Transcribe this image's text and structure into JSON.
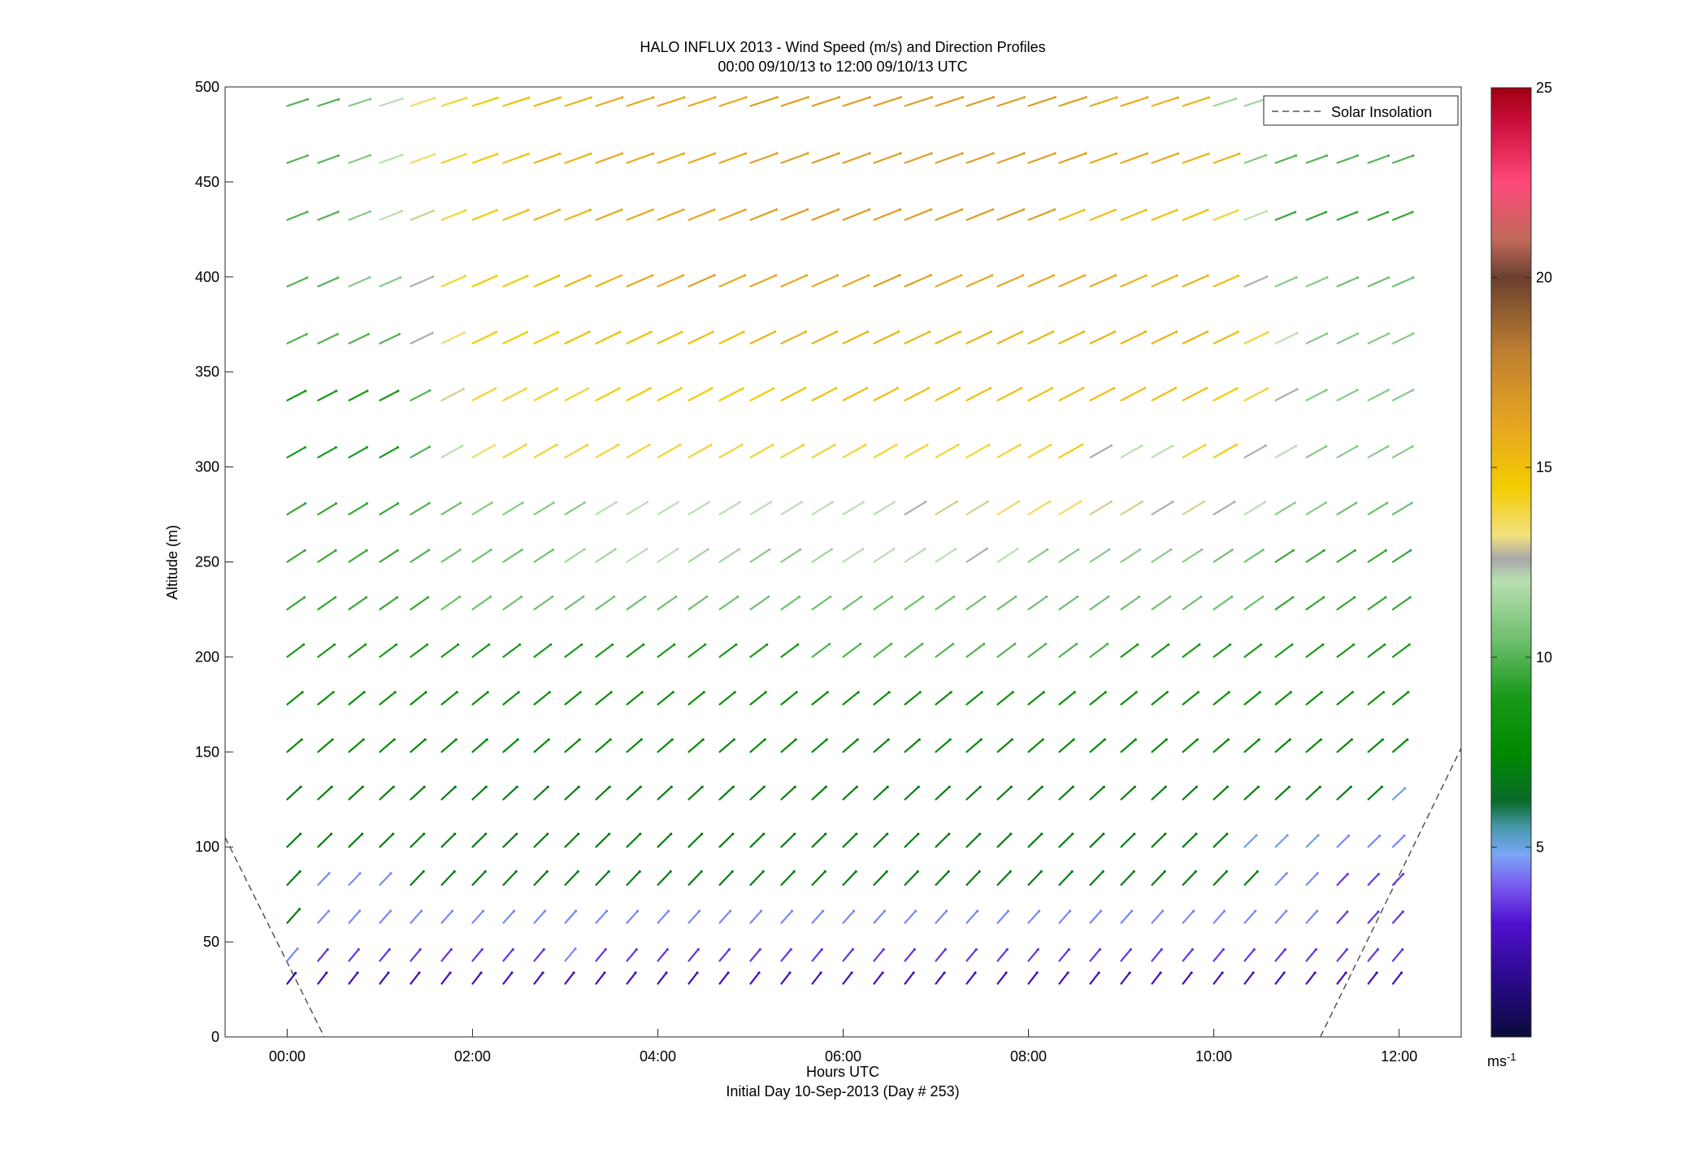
{
  "chart_data": {
    "type": "vector-field",
    "title": "HALO INFLUX 2013 - Wind Speed (m/s) and Direction Profiles",
    "subtitle": "00:00 09/10/13 to 12:00 09/10/13  UTC",
    "xlabel": "Hours UTC",
    "xlabel2": "Initial Day 10-Sep-2013 (Day # 253)",
    "ylabel": "Altitude (m)",
    "x_range_hours": [
      -0.67,
      12.67
    ],
    "ylim": [
      0,
      500
    ],
    "x_ticks": [
      {
        "hour": 0,
        "label": "00:00"
      },
      {
        "hour": 2,
        "label": "02:00"
      },
      {
        "hour": 4,
        "label": "04:00"
      },
      {
        "hour": 6,
        "label": "06:00"
      },
      {
        "hour": 8,
        "label": "08:00"
      },
      {
        "hour": 10,
        "label": "10:00"
      },
      {
        "hour": 12,
        "label": "12:00"
      }
    ],
    "y_ticks": [
      0,
      50,
      100,
      150,
      200,
      250,
      300,
      350,
      400,
      450,
      500
    ],
    "legend": {
      "label": "Solar Insolation",
      "placement": "top-right",
      "style": "dashed"
    },
    "colorbar": {
      "range": [
        0,
        25
      ],
      "ticks": [
        5,
        10,
        15,
        20,
        25
      ],
      "unit": "ms",
      "unit_exponent": "-1",
      "stops": [
        {
          "v": 0,
          "color": "#0a0a3a"
        },
        {
          "v": 1.5,
          "color": "#2a0a8a"
        },
        {
          "v": 3,
          "color": "#5010d0"
        },
        {
          "v": 4,
          "color": "#7a5cf0"
        },
        {
          "v": 4.8,
          "color": "#7aa6f4"
        },
        {
          "v": 5.5,
          "color": "#4a9ab0"
        },
        {
          "v": 6.2,
          "color": "#0a6a2a"
        },
        {
          "v": 7.5,
          "color": "#008a00"
        },
        {
          "v": 9,
          "color": "#1a9a1a"
        },
        {
          "v": 10.5,
          "color": "#70c070"
        },
        {
          "v": 12,
          "color": "#b8e0b0"
        },
        {
          "v": 12.6,
          "color": "#a8a8a8"
        },
        {
          "v": 13.2,
          "color": "#f2e080"
        },
        {
          "v": 14.5,
          "color": "#f2cc00"
        },
        {
          "v": 16,
          "color": "#e8a820"
        },
        {
          "v": 18,
          "color": "#c08030"
        },
        {
          "v": 20,
          "color": "#6a4030"
        },
        {
          "v": 21,
          "color": "#c06a5a"
        },
        {
          "v": 22.5,
          "color": "#ff4a7a"
        },
        {
          "v": 24,
          "color": "#d01040"
        },
        {
          "v": 25,
          "color": "#a00010"
        }
      ]
    },
    "solar_insolation_line": {
      "segments": [
        [
          [
            -0.67,
            105
          ],
          [
            0.4,
            0
          ]
        ],
        [
          [
            11.15,
            0
          ],
          [
            12.67,
            152
          ]
        ]
      ]
    },
    "altitudes_m": [
      28,
      40,
      60,
      80,
      100,
      125,
      150,
      175,
      200,
      225,
      250,
      275,
      305,
      335,
      365,
      395,
      430,
      460,
      490
    ],
    "times_hours": [
      0,
      0.333,
      0.667,
      1.0,
      1.333,
      1.667,
      2.0,
      2.333,
      2.667,
      3.0,
      3.333,
      3.667,
      4.0,
      4.333,
      4.667,
      5.0,
      5.333,
      5.667,
      6.0,
      6.333,
      6.667,
      7.0,
      7.333,
      7.667,
      8.0,
      8.333,
      8.667,
      9.0,
      9.333,
      9.667,
      10.0,
      10.333,
      10.667,
      11.0,
      11.333,
      11.667,
      11.933
    ],
    "wind_speed_ms": [
      [
        2,
        2.5,
        2.5,
        2.5,
        2.5,
        2.5,
        2.5,
        2.5,
        2.5,
        2.5,
        2.5,
        2.5,
        2.5,
        2.5,
        2.5,
        2.5,
        2.5,
        2.5,
        2.5,
        2.5,
        2.5,
        2.5,
        2.5,
        2.5,
        2.5,
        2.5,
        2.5,
        2.5,
        2.5,
        2.5,
        2.5,
        2.5,
        2.5,
        2.5,
        2.5,
        2.5,
        2.5
      ],
      [
        4.5,
        3.5,
        3.5,
        3.5,
        3.5,
        3.5,
        3.5,
        3.5,
        3.5,
        4.5,
        3.5,
        3.5,
        3.5,
        3.5,
        3.5,
        3.5,
        3.5,
        3.5,
        3.5,
        3.5,
        3.5,
        3.5,
        3.5,
        3.5,
        3.5,
        3.5,
        3.5,
        3.5,
        3.5,
        3.5,
        3.5,
        3.5,
        3.5,
        3.5,
        3.5,
        3.5,
        3.5
      ],
      [
        7,
        4.5,
        4.5,
        4.5,
        4.5,
        4.5,
        4.5,
        4.5,
        4.5,
        4.5,
        4.5,
        4.5,
        4.5,
        4.5,
        4.5,
        4.5,
        4.5,
        4.5,
        4.5,
        4.5,
        4.5,
        4.5,
        4.5,
        4.5,
        4.5,
        4.5,
        4.5,
        4.5,
        4.5,
        4.5,
        4.5,
        4.5,
        4.5,
        4.5,
        3.5,
        3.5,
        3.5
      ],
      [
        7,
        4.5,
        4.5,
        4.5,
        7,
        7,
        7,
        7,
        7,
        7,
        7,
        7,
        7,
        7,
        7,
        7,
        7,
        7,
        7,
        7,
        7,
        7,
        7,
        7,
        7,
        7,
        7,
        7,
        7,
        7,
        7,
        7,
        4.5,
        4.5,
        3.5,
        3.5,
        3.5
      ],
      [
        7,
        7,
        7,
        7,
        7,
        7,
        7,
        7,
        7,
        7,
        7,
        7,
        7,
        7,
        7,
        7,
        7,
        7,
        7,
        7,
        7,
        7,
        7,
        7,
        7,
        7,
        7,
        7,
        7,
        7,
        7,
        5,
        5,
        5,
        4.5,
        4.5,
        4.5
      ],
      [
        7,
        7,
        7,
        7,
        7,
        7,
        7,
        7,
        7,
        7,
        7,
        7,
        7,
        7,
        7,
        7,
        7,
        7,
        7,
        7,
        7,
        7,
        7,
        7,
        7,
        7,
        7,
        7,
        7,
        7,
        7,
        7,
        7,
        7,
        7,
        7,
        5
      ],
      [
        7.5,
        7.5,
        7.5,
        7.5,
        7.5,
        7.5,
        7.5,
        7.5,
        7.5,
        7.5,
        7.5,
        7.5,
        7.5,
        7.5,
        7.5,
        7.5,
        7.5,
        7.5,
        7.5,
        7.5,
        7.5,
        7.5,
        7.5,
        7.5,
        7.5,
        7.5,
        7.5,
        7.5,
        7.5,
        7.5,
        7.5,
        7.5,
        7.5,
        7.5,
        7.5,
        7.5,
        7.5
      ],
      [
        8,
        8,
        8,
        8,
        8,
        8,
        8,
        8,
        8,
        8,
        8,
        8,
        8,
        8,
        8,
        8,
        8,
        8,
        8,
        8,
        8,
        8,
        8,
        8,
        8,
        8,
        8,
        8,
        8,
        8,
        8,
        8,
        8,
        8,
        8,
        8,
        8
      ],
      [
        9,
        9,
        9,
        9,
        9,
        9,
        9,
        9,
        9,
        9,
        9,
        9,
        9,
        9,
        9,
        9,
        9,
        10,
        10,
        10,
        10,
        10,
        10,
        10,
        10,
        10,
        10,
        9,
        9,
        9,
        9,
        9,
        9,
        9,
        9,
        9,
        9
      ],
      [
        9.5,
        9.5,
        9.5,
        9.5,
        9.5,
        10.5,
        10.5,
        10.5,
        10.5,
        10.5,
        10.5,
        10.5,
        10.5,
        10.5,
        10.5,
        10.5,
        10.5,
        10.5,
        10.5,
        10.5,
        10.5,
        10.5,
        10.5,
        10.5,
        10.5,
        10.5,
        10.5,
        10.5,
        10.5,
        10.5,
        10.5,
        10.5,
        9.5,
        9.5,
        9.5,
        9.5,
        9.5
      ],
      [
        9.5,
        9.5,
        9.5,
        9.5,
        10,
        10.5,
        10.5,
        10.5,
        10.5,
        11.5,
        11.5,
        12,
        12,
        11.5,
        11.5,
        11,
        11,
        11.5,
        12,
        12,
        12,
        12,
        12.5,
        12,
        11,
        11,
        11,
        11,
        11,
        11,
        10.5,
        10.5,
        9.5,
        9.5,
        9.5,
        9.5,
        9.5
      ],
      [
        9.5,
        9.5,
        9.5,
        9.5,
        10,
        10.5,
        11,
        11,
        11,
        11,
        12,
        12,
        12,
        12,
        12,
        12,
        12,
        12,
        12,
        12,
        12.5,
        13,
        13,
        13.5,
        13.5,
        13.5,
        13,
        13,
        12.5,
        13,
        12.5,
        12,
        11,
        11,
        10.5,
        10.5,
        10.5
      ],
      [
        9,
        9,
        9,
        9,
        10,
        12,
        13.5,
        14,
        14,
        14,
        14,
        14,
        14,
        14,
        14,
        14,
        14,
        14,
        14,
        14,
        14,
        14,
        14,
        14,
        14,
        14.5,
        12.5,
        12,
        12,
        14,
        14.5,
        12.5,
        12,
        11,
        11,
        11,
        11
      ],
      [
        9,
        9,
        9,
        9,
        10,
        13,
        14,
        14,
        14,
        14,
        14.5,
        14.5,
        14.5,
        14.5,
        14.5,
        14.5,
        15,
        15,
        15,
        15,
        15,
        15,
        15,
        15,
        15,
        15,
        15,
        15,
        15,
        15,
        14.5,
        14,
        12.5,
        11,
        11,
        11,
        11
      ],
      [
        10,
        10,
        10,
        10,
        12.5,
        13.5,
        14.5,
        14.5,
        14.5,
        15,
        15,
        15,
        15,
        15,
        15,
        15.5,
        15.5,
        15.5,
        15.5,
        15.5,
        15.5,
        15.5,
        15.5,
        15.5,
        15.5,
        15.5,
        15.5,
        15.5,
        15.5,
        15.5,
        15,
        14,
        12,
        11,
        11,
        11,
        11
      ],
      [
        10,
        10,
        11,
        11,
        12.5,
        14,
        14.5,
        14.5,
        15,
        15.5,
        15.5,
        16,
        16,
        16.5,
        16,
        16,
        16,
        16,
        16,
        16.5,
        16.5,
        16,
        16,
        16,
        16,
        16,
        16,
        15.5,
        15.5,
        15.5,
        15,
        12.5,
        11,
        11,
        10.5,
        10.5,
        10.5
      ],
      [
        10,
        10,
        11,
        12,
        13,
        14,
        14.5,
        15,
        15.5,
        15.5,
        16,
        16,
        16,
        16,
        16,
        16.5,
        16.5,
        16.5,
        16.5,
        16.5,
        16.5,
        16.5,
        16.5,
        16.5,
        16.5,
        15,
        15,
        15,
        15,
        15,
        14,
        12,
        9.5,
        9.5,
        9.5,
        9.5,
        9.5
      ],
      [
        10,
        10,
        11,
        12,
        13.5,
        14,
        14.5,
        15,
        15.5,
        15.5,
        16,
        16,
        16,
        16,
        16,
        16.5,
        16.5,
        16.5,
        16.5,
        16.5,
        16.5,
        16.5,
        16.5,
        16.5,
        16.5,
        16.5,
        16,
        16,
        16,
        15.5,
        15.5,
        11,
        10,
        10,
        10,
        10,
        10
      ],
      [
        10,
        10,
        11,
        12,
        13.5,
        14,
        14.5,
        15,
        15.5,
        15.5,
        16,
        16,
        16,
        16,
        16,
        16.5,
        16.5,
        16.5,
        16.5,
        16.5,
        16.5,
        16.5,
        16.5,
        16.5,
        16.5,
        16.5,
        16,
        16,
        15.5,
        15.5,
        11.5,
        11.5,
        10,
        10,
        10,
        10,
        10
      ]
    ]
  }
}
